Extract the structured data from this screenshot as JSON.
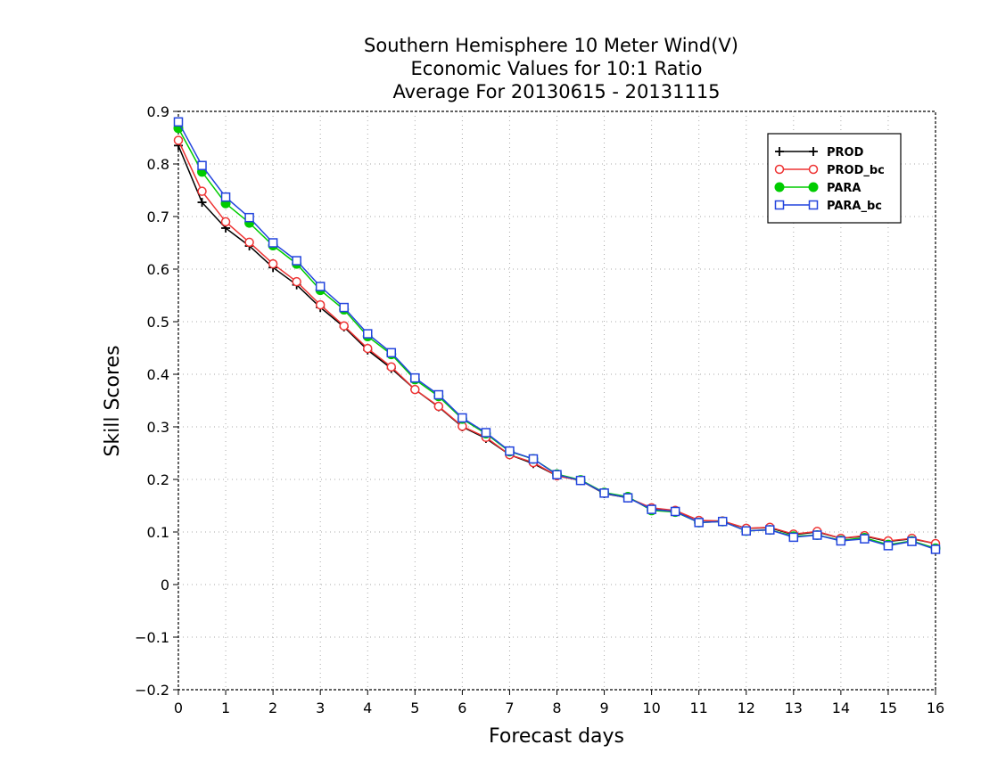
{
  "chart_data": {
    "type": "line",
    "title_lines": [
      "Southern Hemisphere 10 Meter Wind(V)",
      "Economic Values for 10:1 Ratio",
      "Average For 20130615 - 20131115"
    ],
    "xlabel": "Forecast days",
    "ylabel": "Skill Scores",
    "xlim": [
      0,
      16
    ],
    "ylim": [
      -0.2,
      0.9
    ],
    "xticks": [
      0,
      1,
      2,
      3,
      4,
      5,
      6,
      7,
      8,
      9,
      10,
      11,
      12,
      13,
      14,
      15,
      16
    ],
    "yticks": [
      -0.2,
      -0.1,
      0,
      0.1,
      0.2,
      0.3,
      0.4,
      0.5,
      0.6,
      0.7,
      0.8,
      0.9
    ],
    "xtick_labels": [
      "0",
      "1",
      "2",
      "3",
      "4",
      "5",
      "6",
      "7",
      "8",
      "9",
      "10",
      "11",
      "12",
      "13",
      "14",
      "15",
      "16"
    ],
    "ytick_labels": [
      "−0.2",
      "−0.1",
      "0",
      "0.1",
      "0.2",
      "0.3",
      "0.4",
      "0.5",
      "0.6",
      "0.7",
      "0.8",
      "0.9"
    ],
    "grid": true,
    "legend_position": "top-right",
    "x": [
      0,
      0.5,
      1,
      1.5,
      2,
      2.5,
      3,
      3.5,
      4,
      4.5,
      5,
      5.5,
      6,
      6.5,
      7,
      7.5,
      8,
      8.5,
      9,
      9.5,
      10,
      10.5,
      11,
      11.5,
      12,
      12.5,
      13,
      13.5,
      14,
      14.5,
      15,
      15.5,
      16
    ],
    "series": [
      {
        "name": "PROD",
        "color": "#000000",
        "marker": "plus",
        "values": [
          0.835,
          0.727,
          0.678,
          0.644,
          0.603,
          0.57,
          0.527,
          0.49,
          0.446,
          0.411,
          0.371,
          0.338,
          0.3,
          0.278,
          0.247,
          0.23,
          0.207,
          0.198,
          0.173,
          0.165,
          0.145,
          0.14,
          0.122,
          0.12,
          0.107,
          0.108,
          0.095,
          0.1,
          0.088,
          0.092,
          0.082,
          0.087,
          0.078
        ]
      },
      {
        "name": "PROD_bc",
        "color": "#ee3333",
        "marker": "circle-open",
        "values": [
          0.845,
          0.748,
          0.69,
          0.651,
          0.61,
          0.576,
          0.532,
          0.492,
          0.449,
          0.414,
          0.371,
          0.339,
          0.301,
          0.28,
          0.247,
          0.232,
          0.207,
          0.198,
          0.174,
          0.165,
          0.146,
          0.141,
          0.122,
          0.121,
          0.107,
          0.109,
          0.096,
          0.101,
          0.088,
          0.093,
          0.083,
          0.088,
          0.078
        ]
      },
      {
        "name": "PARA",
        "color": "#00cc00",
        "marker": "circle-filled",
        "values": [
          0.868,
          0.785,
          0.725,
          0.688,
          0.645,
          0.61,
          0.56,
          0.523,
          0.472,
          0.438,
          0.39,
          0.358,
          0.315,
          0.287,
          0.253,
          0.239,
          0.21,
          0.199,
          0.175,
          0.167,
          0.141,
          0.138,
          0.118,
          0.12,
          0.102,
          0.104,
          0.092,
          0.094,
          0.084,
          0.089,
          0.076,
          0.083,
          0.069
        ]
      },
      {
        "name": "PARA_bc",
        "color": "#2244dd",
        "marker": "square-open",
        "values": [
          0.88,
          0.797,
          0.737,
          0.698,
          0.65,
          0.616,
          0.567,
          0.527,
          0.477,
          0.441,
          0.393,
          0.361,
          0.317,
          0.289,
          0.254,
          0.239,
          0.209,
          0.198,
          0.174,
          0.165,
          0.143,
          0.139,
          0.118,
          0.12,
          0.102,
          0.104,
          0.09,
          0.094,
          0.083,
          0.087,
          0.074,
          0.082,
          0.067
        ]
      }
    ]
  }
}
